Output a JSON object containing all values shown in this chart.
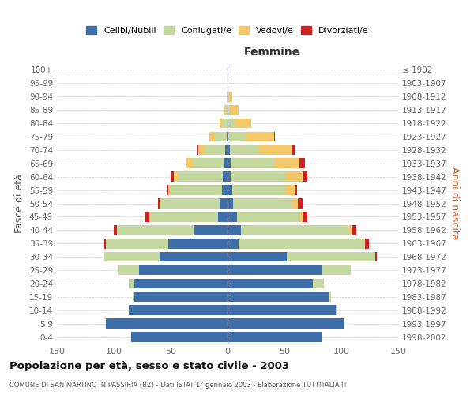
{
  "age_groups": [
    "0-4",
    "5-9",
    "10-14",
    "15-19",
    "20-24",
    "25-29",
    "30-34",
    "35-39",
    "40-44",
    "45-49",
    "50-54",
    "55-59",
    "60-64",
    "65-69",
    "70-74",
    "75-79",
    "80-84",
    "85-89",
    "90-94",
    "95-99",
    "100+"
  ],
  "birth_years": [
    "1998-2002",
    "1993-1997",
    "1988-1992",
    "1983-1987",
    "1978-1982",
    "1973-1977",
    "1968-1972",
    "1963-1967",
    "1958-1962",
    "1953-1957",
    "1948-1952",
    "1943-1947",
    "1938-1942",
    "1933-1937",
    "1928-1932",
    "1923-1927",
    "1918-1922",
    "1913-1917",
    "1908-1912",
    "1903-1907",
    "≤ 1902"
  ],
  "males": {
    "celibi": [
      85,
      107,
      87,
      82,
      82,
      78,
      60,
      52,
      30,
      8,
      7,
      5,
      4,
      3,
      2,
      1,
      0,
      0,
      0,
      0,
      0
    ],
    "coniugati": [
      0,
      0,
      0,
      1,
      5,
      18,
      48,
      55,
      67,
      60,
      52,
      45,
      40,
      28,
      18,
      10,
      5,
      2,
      1,
      0,
      0
    ],
    "vedovi": [
      0,
      0,
      0,
      0,
      0,
      0,
      0,
      0,
      0,
      1,
      1,
      2,
      3,
      5,
      6,
      5,
      2,
      1,
      0,
      0,
      0
    ],
    "divorziati": [
      0,
      0,
      0,
      0,
      0,
      0,
      0,
      1,
      3,
      4,
      1,
      1,
      3,
      1,
      1,
      0,
      0,
      0,
      0,
      0,
      0
    ]
  },
  "females": {
    "nubili": [
      83,
      103,
      95,
      89,
      75,
      83,
      52,
      10,
      12,
      8,
      5,
      4,
      3,
      3,
      2,
      1,
      0,
      0,
      0,
      0,
      0
    ],
    "coniugate": [
      0,
      0,
      1,
      2,
      10,
      25,
      78,
      110,
      95,
      55,
      52,
      47,
      48,
      38,
      25,
      15,
      6,
      2,
      1,
      0,
      0
    ],
    "vedove": [
      0,
      0,
      0,
      0,
      0,
      0,
      0,
      1,
      2,
      3,
      5,
      8,
      15,
      22,
      30,
      25,
      15,
      8,
      3,
      1,
      0
    ],
    "divorziate": [
      0,
      0,
      0,
      0,
      0,
      0,
      1,
      3,
      4,
      4,
      4,
      2,
      4,
      5,
      2,
      1,
      0,
      0,
      0,
      0,
      0
    ]
  },
  "colors": {
    "celibi": "#3d6ea8",
    "coniugati": "#c5d8a0",
    "vedovi": "#f5c96a",
    "divorziati": "#cc2222"
  },
  "title": "Popolazione per età, sesso e stato civile - 2003",
  "subtitle": "COMUNE DI SAN MARTINO IN PASSIRIA (BZ) - Dati ISTAT 1° gennaio 2003 - Elaborazione TUTTITALIA.IT",
  "xlabel_right": "Femmine",
  "ylabel_left": "Fasce di età",
  "ylabel_right": "Anni di nascita",
  "xlim": 150,
  "legend_labels": [
    "Celibi/Nubili",
    "Coniugati/e",
    "Vedovi/e",
    "Divorziati/e"
  ],
  "background": "#ffffff"
}
